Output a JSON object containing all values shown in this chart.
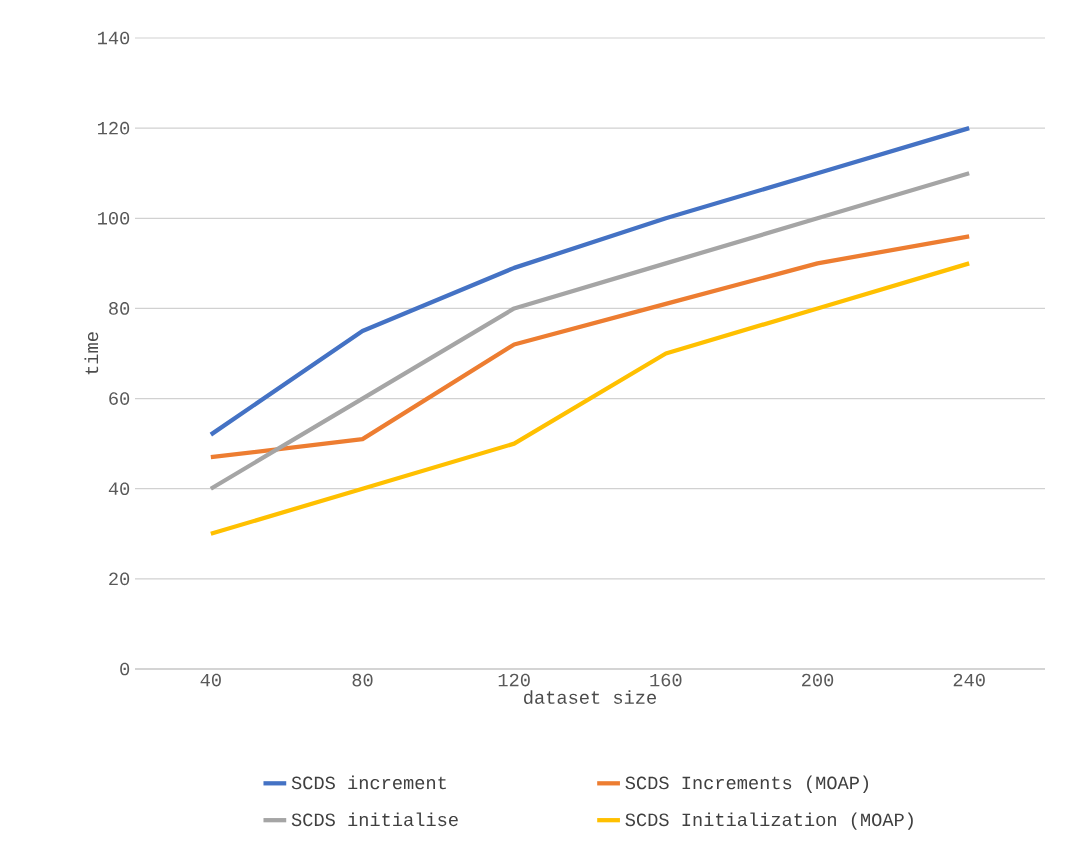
{
  "chart_data": {
    "type": "line",
    "xlabel": "dataset size",
    "ylabel": "time",
    "categories": [
      "40",
      "80",
      "120",
      "160",
      "200",
      "240"
    ],
    "series": [
      {
        "name": "SCDS increment",
        "color": "#4472c4",
        "values": [
          52,
          75,
          89,
          100,
          110,
          120
        ]
      },
      {
        "name": "SCDS Increments (MOAP)",
        "color": "#ed7d31",
        "values": [
          47,
          51,
          72,
          81,
          90,
          96
        ]
      },
      {
        "name": "SCDS initialise",
        "color": "#a5a5a5",
        "values": [
          40,
          60,
          80,
          90,
          100,
          110
        ]
      },
      {
        "name": "SCDS Initialization (MOAP)",
        "color": "#ffc000",
        "values": [
          30,
          40,
          50,
          70,
          80,
          90
        ]
      }
    ],
    "ylim": [
      0,
      140
    ],
    "yticks": [
      0,
      20,
      40,
      60,
      80,
      100,
      120,
      140
    ],
    "grid": "y",
    "legend": "bottom",
    "marker": "none",
    "line_style": "solid"
  }
}
